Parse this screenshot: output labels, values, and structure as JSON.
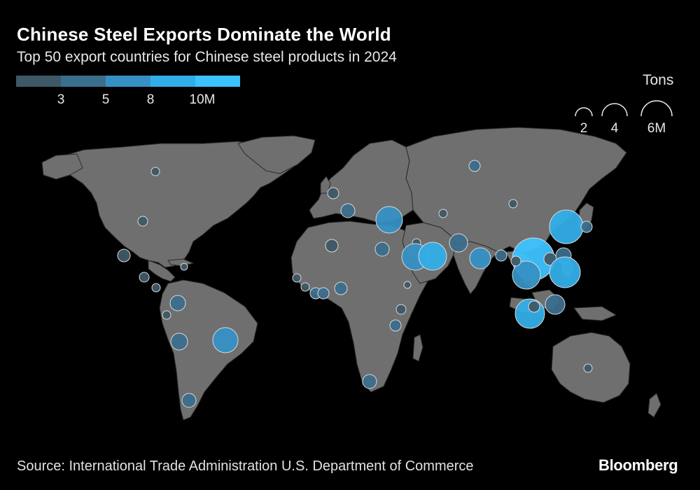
{
  "title": "Chinese Steel Exports Dominate the World",
  "subtitle": "Top 50 export countries for Chinese steel products in 2024",
  "color_legend": {
    "ticks": [
      "3",
      "5",
      "8",
      "10M"
    ],
    "colors": [
      "#3f5866",
      "#3b6e8c",
      "#3690c4",
      "#31aee8",
      "#3cc2ff"
    ]
  },
  "size_legend": {
    "title": "Tons",
    "entries": [
      {
        "label": "2",
        "value": 2
      },
      {
        "label": "4",
        "value": 4
      },
      {
        "label": "6M",
        "value": 6
      }
    ]
  },
  "colors": {
    "land": "#6f6f6f",
    "ocean": "#000000",
    "bubble_stroke": "#d8d8d8"
  },
  "source": "Source: International Trade Administration U.S. Department of Commerce",
  "brand": "Bloomberg"
}
